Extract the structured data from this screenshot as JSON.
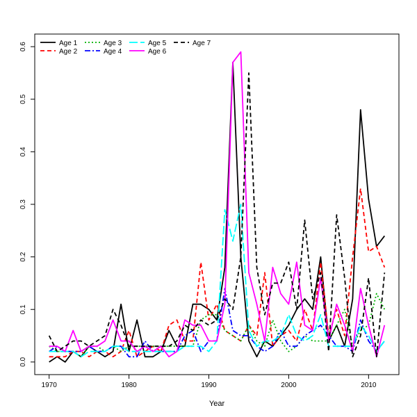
{
  "chart_data": {
    "type": "line",
    "title": "",
    "xlabel": "Year",
    "ylabel": "",
    "xlim": [
      1968.2,
      2013.8
    ],
    "ylim": [
      -0.024,
      0.624
    ],
    "x_ticks": [
      1970,
      1980,
      1990,
      2000,
      2010
    ],
    "y_ticks": [
      0.0,
      0.1,
      0.2,
      0.3,
      0.4,
      0.5,
      0.6
    ],
    "grid": false,
    "legend_position": "top-left",
    "x": [
      1970,
      1971,
      1972,
      1973,
      1974,
      1975,
      1976,
      1977,
      1978,
      1979,
      1980,
      1981,
      1982,
      1983,
      1984,
      1985,
      1986,
      1987,
      1988,
      1989,
      1990,
      1991,
      1992,
      1993,
      1994,
      1995,
      1996,
      1997,
      1998,
      1999,
      2000,
      2001,
      2002,
      2003,
      2004,
      2005,
      2006,
      2007,
      2008,
      2009,
      2010,
      2011,
      2012
    ],
    "series": [
      {
        "name": "Age 1",
        "color": "#000000",
        "dash": "solid",
        "values": [
          0.0,
          0.01,
          0.0,
          0.02,
          0.01,
          0.03,
          0.02,
          0.01,
          0.02,
          0.11,
          0.02,
          0.08,
          0.01,
          0.01,
          0.02,
          0.06,
          0.03,
          0.03,
          0.11,
          0.11,
          0.1,
          0.08,
          0.18,
          0.57,
          0.2,
          0.04,
          0.01,
          0.04,
          0.03,
          0.05,
          0.07,
          0.1,
          0.12,
          0.1,
          0.2,
          0.04,
          0.07,
          0.03,
          0.12,
          0.48,
          0.31,
          0.22,
          0.24
        ]
      },
      {
        "name": "Age 2",
        "color": "#ff0000",
        "dash": "6,4",
        "values": [
          0.01,
          0.01,
          0.01,
          0.02,
          0.02,
          0.01,
          0.02,
          0.02,
          0.01,
          0.02,
          0.06,
          0.01,
          0.02,
          0.03,
          0.02,
          0.07,
          0.08,
          0.04,
          0.04,
          0.19,
          0.08,
          0.11,
          0.06,
          0.05,
          0.04,
          0.07,
          0.05,
          0.17,
          0.03,
          0.05,
          0.06,
          0.04,
          0.1,
          0.06,
          0.19,
          0.05,
          0.1,
          0.05,
          0.2,
          0.33,
          0.21,
          0.22,
          0.18
        ]
      },
      {
        "name": "Age 3",
        "color": "#00b000",
        "dash": "2,3",
        "values": [
          0.03,
          0.02,
          0.02,
          0.02,
          0.01,
          0.03,
          0.03,
          0.02,
          0.03,
          0.02,
          0.03,
          0.03,
          0.03,
          0.03,
          0.03,
          0.03,
          0.03,
          0.03,
          0.03,
          0.08,
          0.09,
          0.09,
          0.06,
          0.05,
          0.04,
          0.07,
          0.04,
          0.03,
          0.08,
          0.04,
          0.02,
          0.03,
          0.05,
          0.04,
          0.04,
          0.04,
          0.07,
          0.1,
          0.03,
          0.06,
          0.07,
          0.13,
          0.1
        ]
      },
      {
        "name": "Age 4",
        "color": "#0000ff",
        "dash": "8,3,2,3",
        "values": [
          0.02,
          0.03,
          0.02,
          0.02,
          0.02,
          0.03,
          0.02,
          0.02,
          0.03,
          0.03,
          0.01,
          0.01,
          0.04,
          0.02,
          0.02,
          0.02,
          0.02,
          0.05,
          0.06,
          0.02,
          0.04,
          0.04,
          0.14,
          0.06,
          0.05,
          0.05,
          0.03,
          0.02,
          0.03,
          0.06,
          0.03,
          0.03,
          0.05,
          0.06,
          0.07,
          0.05,
          0.03,
          0.03,
          0.02,
          0.08,
          0.04,
          0.02,
          0.04
        ]
      },
      {
        "name": "Age 5",
        "color": "#00ffff",
        "dash": "12,4",
        "values": [
          0.02,
          0.02,
          0.02,
          0.02,
          0.01,
          0.02,
          0.02,
          0.02,
          0.03,
          0.03,
          0.02,
          0.02,
          0.02,
          0.02,
          0.02,
          0.02,
          0.02,
          0.03,
          0.03,
          0.03,
          0.02,
          0.04,
          0.29,
          0.23,
          0.3,
          0.06,
          0.03,
          0.04,
          0.04,
          0.05,
          0.09,
          0.05,
          0.04,
          0.05,
          0.09,
          0.03,
          0.03,
          0.03,
          0.03,
          0.07,
          0.05,
          0.02,
          0.04
        ]
      },
      {
        "name": "Age 6",
        "color": "#ff00ff",
        "dash": "solid",
        "values": [
          0.03,
          0.03,
          0.02,
          0.06,
          0.02,
          0.03,
          0.03,
          0.04,
          0.08,
          0.04,
          0.04,
          0.02,
          0.03,
          0.02,
          0.03,
          0.01,
          0.02,
          0.08,
          0.07,
          0.07,
          0.04,
          0.04,
          0.11,
          0.57,
          0.59,
          0.17,
          0.11,
          0.04,
          0.18,
          0.13,
          0.11,
          0.19,
          0.07,
          0.06,
          0.16,
          0.04,
          0.11,
          0.07,
          0.02,
          0.14,
          0.07,
          0.01,
          0.07
        ]
      },
      {
        "name": "Age 7",
        "color": "#000000",
        "dash": "6,4",
        "values": [
          0.05,
          0.02,
          0.03,
          0.04,
          0.04,
          0.03,
          0.04,
          0.05,
          0.1,
          0.07,
          0.03,
          0.03,
          0.03,
          0.03,
          0.03,
          0.03,
          0.04,
          0.07,
          0.06,
          0.08,
          0.07,
          0.08,
          0.12,
          0.1,
          0.2,
          0.55,
          0.18,
          0.09,
          0.15,
          0.15,
          0.19,
          0.1,
          0.27,
          0.12,
          0.17,
          0.02,
          0.28,
          0.16,
          0.01,
          0.05,
          0.16,
          0.01,
          0.17
        ]
      }
    ]
  }
}
